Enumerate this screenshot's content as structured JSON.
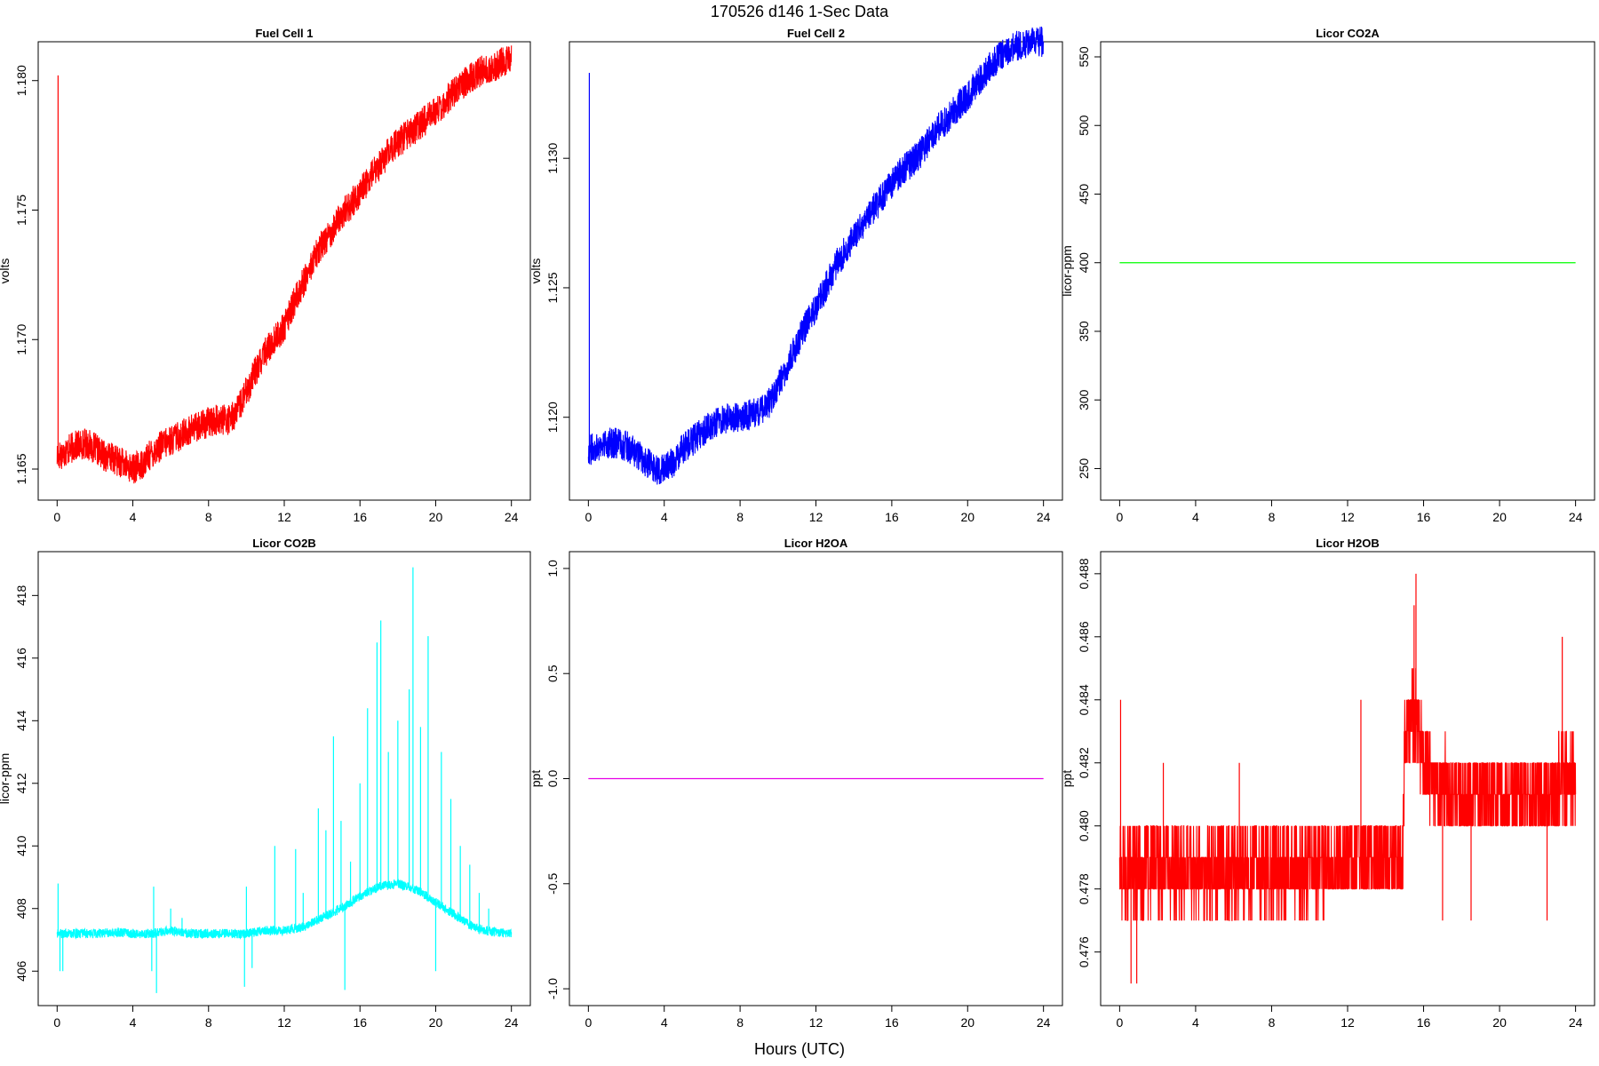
{
  "figure": {
    "title": "170526    d146    1-Sec Data",
    "xlabel": "Hours (UTC)"
  },
  "chart_data": [
    {
      "type": "line",
      "title": "Fuel Cell 1",
      "ylabel": "volts",
      "color": "#ff0000",
      "xlim": [
        -1,
        25
      ],
      "ylim": [
        1.1638,
        1.1815
      ],
      "xticks": [
        0,
        4,
        8,
        12,
        16,
        20,
        24
      ],
      "yticks": [
        1.165,
        1.17,
        1.175,
        1.18
      ],
      "ytick_labels": [
        "1.165",
        "1.170",
        "1.175",
        "1.180"
      ],
      "noise": 0.0006,
      "spike": {
        "x": 0.05,
        "y": 1.1802
      },
      "x": [
        0,
        0.5,
        1,
        1.5,
        2,
        2.5,
        3,
        3.5,
        4,
        4.5,
        5,
        5.5,
        6,
        6.5,
        7,
        7.5,
        8,
        8.5,
        9,
        9.5,
        10,
        10.5,
        11,
        11.5,
        12,
        12.5,
        13,
        13.5,
        14,
        14.5,
        15,
        15.5,
        16,
        16.5,
        17,
        17.5,
        18,
        18.5,
        19,
        19.5,
        20,
        20.5,
        21,
        21.5,
        22,
        22.5,
        23,
        23.5,
        24
      ],
      "y": [
        1.1655,
        1.1657,
        1.1659,
        1.166,
        1.1658,
        1.1655,
        1.1654,
        1.1652,
        1.165,
        1.1652,
        1.1656,
        1.1659,
        1.1661,
        1.1663,
        1.1665,
        1.1667,
        1.1668,
        1.1669,
        1.1669,
        1.1672,
        1.168,
        1.1688,
        1.1695,
        1.17,
        1.1705,
        1.1714,
        1.1722,
        1.173,
        1.1737,
        1.1742,
        1.1748,
        1.1752,
        1.1757,
        1.1762,
        1.1767,
        1.1772,
        1.1776,
        1.1779,
        1.1782,
        1.1785,
        1.1788,
        1.1792,
        1.1796,
        1.1799,
        1.1802,
        1.1804,
        1.1805,
        1.1807,
        1.1808
      ]
    },
    {
      "type": "line",
      "title": "Fuel Cell 2",
      "ylabel": "volts",
      "color": "#0000ff",
      "xlim": [
        -1,
        25
      ],
      "ylim": [
        1.1168,
        1.1345
      ],
      "xticks": [
        0,
        4,
        8,
        12,
        16,
        20,
        24
      ],
      "yticks": [
        1.12,
        1.125,
        1.13
      ],
      "ytick_labels": [
        "1.120",
        "1.125",
        "1.130"
      ],
      "noise": 0.0006,
      "spike": {
        "x": 0.05,
        "y": 1.1333
      },
      "x": [
        0,
        0.5,
        1,
        1.5,
        2,
        2.5,
        3,
        3.5,
        4,
        4.5,
        5,
        5.5,
        6,
        6.5,
        7,
        7.5,
        8,
        8.5,
        9,
        9.5,
        10,
        10.5,
        11,
        11.5,
        12,
        12.5,
        13,
        13.5,
        14,
        14.5,
        15,
        15.5,
        16,
        16.5,
        17,
        17.5,
        18,
        18.5,
        19,
        19.5,
        20,
        20.5,
        21,
        21.5,
        22,
        22.5,
        23,
        23.5,
        24
      ],
      "y": [
        1.1187,
        1.1189,
        1.119,
        1.119,
        1.1189,
        1.1186,
        1.1183,
        1.118,
        1.118,
        1.1183,
        1.1188,
        1.1191,
        1.1194,
        1.1197,
        1.1199,
        1.12,
        1.12,
        1.1201,
        1.1202,
        1.1205,
        1.1212,
        1.122,
        1.1228,
        1.1236,
        1.1242,
        1.125,
        1.1258,
        1.1264,
        1.127,
        1.1275,
        1.128,
        1.1285,
        1.129,
        1.1295,
        1.1298,
        1.1302,
        1.1307,
        1.1312,
        1.1316,
        1.132,
        1.1324,
        1.1329,
        1.1334,
        1.1338,
        1.1341,
        1.1343,
        1.1344,
        1.1345,
        1.1345
      ]
    },
    {
      "type": "line",
      "title": "Licor CO2A",
      "ylabel": "licor-ppm",
      "color": "#00ff00",
      "xlim": [
        -1,
        25
      ],
      "ylim": [
        227,
        561
      ],
      "xticks": [
        0,
        4,
        8,
        12,
        16,
        20,
        24
      ],
      "yticks": [
        250,
        300,
        350,
        400,
        450,
        500,
        550
      ],
      "ytick_labels": [
        "250",
        "300",
        "350",
        "400",
        "450",
        "500",
        "550"
      ],
      "noise": 0,
      "x": [
        0,
        24
      ],
      "y": [
        400,
        400
      ]
    },
    {
      "type": "line",
      "title": "Licor CO2B",
      "ylabel": "licor-ppm",
      "color": "#00ffff",
      "xlim": [
        -1,
        25
      ],
      "ylim": [
        404.9,
        419.4
      ],
      "xticks": [
        0,
        4,
        8,
        12,
        16,
        20,
        24
      ],
      "yticks": [
        406,
        408,
        410,
        412,
        414,
        416,
        418
      ],
      "ytick_labels": [
        "406",
        "408",
        "410",
        "412",
        "414",
        "416",
        "418"
      ],
      "noise": 0.15,
      "spikes": [
        {
          "x": 0.05,
          "y": 408.8
        },
        {
          "x": 0.15,
          "y": 406.0
        },
        {
          "x": 0.3,
          "y": 406.0
        },
        {
          "x": 5.0,
          "y": 406.0
        },
        {
          "x": 5.1,
          "y": 408.7
        },
        {
          "x": 5.25,
          "y": 405.3
        },
        {
          "x": 6.0,
          "y": 408.0
        },
        {
          "x": 6.6,
          "y": 407.7
        },
        {
          "x": 9.9,
          "y": 405.5
        },
        {
          "x": 10.0,
          "y": 408.7
        },
        {
          "x": 10.3,
          "y": 406.1
        },
        {
          "x": 11.5,
          "y": 410.0
        },
        {
          "x": 12.6,
          "y": 409.9
        },
        {
          "x": 13.0,
          "y": 408.5
        },
        {
          "x": 13.8,
          "y": 411.2
        },
        {
          "x": 14.2,
          "y": 410.5
        },
        {
          "x": 14.6,
          "y": 413.5
        },
        {
          "x": 15.0,
          "y": 410.8
        },
        {
          "x": 15.2,
          "y": 405.4
        },
        {
          "x": 15.5,
          "y": 409.5
        },
        {
          "x": 16.0,
          "y": 412.0
        },
        {
          "x": 16.4,
          "y": 414.4
        },
        {
          "x": 16.9,
          "y": 416.5
        },
        {
          "x": 17.1,
          "y": 417.2
        },
        {
          "x": 17.5,
          "y": 413.0
        },
        {
          "x": 18.0,
          "y": 414.0
        },
        {
          "x": 18.6,
          "y": 415.0
        },
        {
          "x": 18.8,
          "y": 418.9
        },
        {
          "x": 19.2,
          "y": 413.8
        },
        {
          "x": 19.6,
          "y": 416.7
        },
        {
          "x": 20.0,
          "y": 406.0
        },
        {
          "x": 20.3,
          "y": 413.0
        },
        {
          "x": 20.8,
          "y": 411.5
        },
        {
          "x": 21.3,
          "y": 410.0
        },
        {
          "x": 21.8,
          "y": 409.4
        },
        {
          "x": 22.3,
          "y": 408.5
        },
        {
          "x": 22.8,
          "y": 408.0
        }
      ],
      "x": [
        0,
        1,
        2,
        3,
        4,
        5,
        6,
        7,
        8,
        9,
        10,
        11,
        12,
        13,
        14,
        15,
        16,
        17,
        18,
        19,
        20,
        21,
        22,
        23,
        24
      ],
      "y": [
        407.2,
        407.2,
        407.2,
        407.25,
        407.2,
        407.2,
        407.3,
        407.2,
        407.2,
        407.2,
        407.2,
        407.3,
        407.3,
        407.4,
        407.7,
        408.0,
        408.4,
        408.7,
        408.8,
        408.6,
        408.2,
        407.8,
        407.4,
        407.25,
        407.2
      ]
    },
    {
      "type": "line",
      "title": "Licor H2OA",
      "ylabel": "ppt",
      "color": "#e600e6",
      "xlim": [
        -1,
        25
      ],
      "ylim": [
        -1.08,
        1.08
      ],
      "xticks": [
        0,
        4,
        8,
        12,
        16,
        20,
        24
      ],
      "yticks": [
        -1.0,
        -0.5,
        0.0,
        0.5,
        1.0
      ],
      "ytick_labels": [
        "-1.0",
        "-0.5",
        "0.0",
        "0.5",
        "1.0"
      ],
      "noise": 0,
      "x": [
        0,
        24
      ],
      "y": [
        0,
        0
      ]
    },
    {
      "type": "line",
      "title": "Licor H2OB",
      "ylabel": "ppt",
      "color": "#ff0000",
      "xlim": [
        -1,
        25
      ],
      "ylim": [
        0.4743,
        0.4887
      ],
      "xticks": [
        0,
        4,
        8,
        12,
        16,
        20,
        24
      ],
      "yticks": [
        0.476,
        0.478,
        0.48,
        0.482,
        0.484,
        0.486,
        0.488
      ],
      "ytick_labels": [
        "0.476",
        "0.478",
        "0.480",
        "0.482",
        "0.484",
        "0.486",
        "0.488"
      ],
      "noise": 0.0014,
      "quantum": 0.001,
      "spikes": [
        {
          "x": 0.05,
          "y": 0.484
        },
        {
          "x": 0.6,
          "y": 0.475
        },
        {
          "x": 0.9,
          "y": 0.475
        },
        {
          "x": 2.3,
          "y": 0.482
        },
        {
          "x": 6.3,
          "y": 0.482
        },
        {
          "x": 12.7,
          "y": 0.484
        },
        {
          "x": 15.6,
          "y": 0.488
        },
        {
          "x": 15.5,
          "y": 0.487
        },
        {
          "x": 23.3,
          "y": 0.486
        },
        {
          "x": 17.0,
          "y": 0.477
        },
        {
          "x": 18.5,
          "y": 0.477
        },
        {
          "x": 22.5,
          "y": 0.477
        }
      ],
      "x": [
        0,
        1,
        2,
        3,
        4,
        5,
        6,
        7,
        8,
        9,
        10,
        11,
        12,
        13,
        14,
        14.9,
        15.0,
        15.5,
        16,
        16.5,
        17,
        18,
        19,
        20,
        21,
        22,
        23,
        24
      ],
      "y": [
        0.4785,
        0.4786,
        0.4787,
        0.4786,
        0.4786,
        0.4786,
        0.4786,
        0.4786,
        0.4786,
        0.4787,
        0.4787,
        0.4788,
        0.4789,
        0.479,
        0.479,
        0.479,
        0.4825,
        0.4835,
        0.482,
        0.4815,
        0.4812,
        0.481,
        0.481,
        0.481,
        0.481,
        0.481,
        0.4812,
        0.4815
      ]
    }
  ]
}
